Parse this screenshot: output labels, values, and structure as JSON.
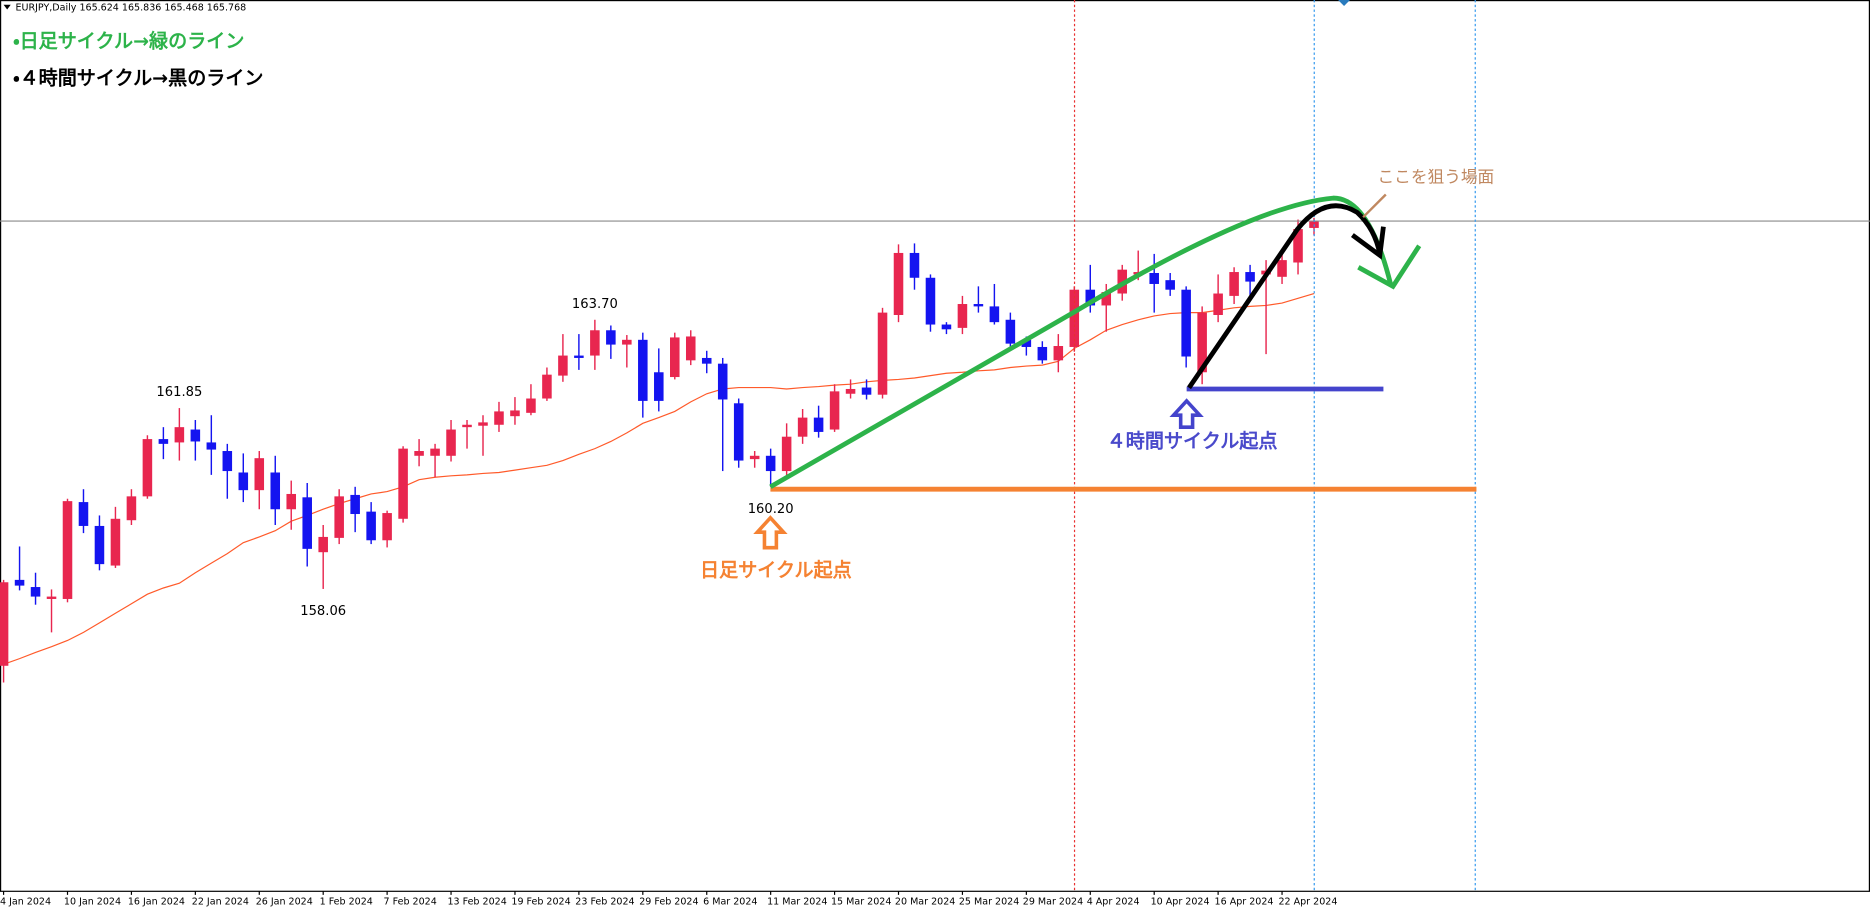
{
  "chart_data": {
    "type": "candlestick",
    "title": "EURJPY,Daily",
    "annotations": {
      "daily_cycle_legend": "・日足サイクル→緑のライン",
      "h4_cycle_legend": "・４時間サイクル→黒のライン",
      "target_zone": "ここを狙う場面",
      "h4_cycle_start": "４時間サイクル起点",
      "daily_cycle_start": "日足サイクル起点"
    },
    "categories": [
      "4 Jan 2024",
      null,
      null,
      null,
      "10 Jan 2024",
      null,
      null,
      null,
      "16 Jan 2024",
      null,
      null,
      null,
      "22 Jan 2024",
      null,
      null,
      null,
      "26 Jan 2024",
      null,
      null,
      null,
      "1 Feb 2024",
      null,
      null,
      null,
      "7 Feb 2024",
      null,
      null,
      null,
      "13 Feb 2024",
      null,
      null,
      null,
      "19 Feb 2024",
      null,
      null,
      null,
      "23 Feb 2024",
      null,
      null,
      null,
      "29 Feb 2024",
      null,
      null,
      null,
      "6 Mar 2024",
      null,
      null,
      null,
      "11 Mar 2024",
      null,
      null,
      null,
      "15 Mar 2024",
      null,
      null,
      null,
      "20 Mar 2024",
      null,
      null,
      null,
      "25 Mar 2024",
      null,
      null,
      null,
      "29 Mar 2024",
      null,
      null,
      null,
      "4 Apr 2024",
      null,
      null,
      null,
      "10 Apr 2024",
      null,
      null,
      null,
      "16 Apr 2024",
      null,
      null,
      null,
      "22 Apr 2024",
      null,
      null
    ],
    "ohlc": [
      [
        156.45,
        158.25,
        156.1,
        158.2
      ],
      [
        158.25,
        158.95,
        158.03,
        158.13
      ],
      [
        158.1,
        158.4,
        157.73,
        157.9
      ],
      [
        157.85,
        158.05,
        157.15,
        157.9
      ],
      [
        157.85,
        159.95,
        157.78,
        159.9
      ],
      [
        159.88,
        160.15,
        159.23,
        159.38
      ],
      [
        159.38,
        159.6,
        158.45,
        158.58
      ],
      [
        158.55,
        159.78,
        158.5,
        159.53
      ],
      [
        159.5,
        160.15,
        159.4,
        160.0
      ],
      [
        160.0,
        161.28,
        159.95,
        161.2
      ],
      [
        161.2,
        161.45,
        160.78,
        161.1
      ],
      [
        161.13,
        161.85,
        160.75,
        161.45
      ],
      [
        161.4,
        161.6,
        160.75,
        161.15
      ],
      [
        161.13,
        161.7,
        160.45,
        160.98
      ],
      [
        160.95,
        161.1,
        159.95,
        160.53
      ],
      [
        160.5,
        160.9,
        159.88,
        160.13
      ],
      [
        160.13,
        160.95,
        159.73,
        160.8
      ],
      [
        160.5,
        160.85,
        159.4,
        159.73
      ],
      [
        159.73,
        160.33,
        159.3,
        160.05
      ],
      [
        159.98,
        160.28,
        158.53,
        158.9
      ],
      [
        158.83,
        159.4,
        158.06,
        159.15
      ],
      [
        159.13,
        160.15,
        159.0,
        160.0
      ],
      [
        160.03,
        160.2,
        159.25,
        159.63
      ],
      [
        159.68,
        159.88,
        159.0,
        159.08
      ],
      [
        159.08,
        159.7,
        158.93,
        159.65
      ],
      [
        159.53,
        161.05,
        159.45,
        161.0
      ],
      [
        160.85,
        161.2,
        160.63,
        160.95
      ],
      [
        160.85,
        161.1,
        160.4,
        161.0
      ],
      [
        160.85,
        161.6,
        160.73,
        161.4
      ],
      [
        161.45,
        161.6,
        161.0,
        161.5
      ],
      [
        161.48,
        161.7,
        160.85,
        161.55
      ],
      [
        161.5,
        161.98,
        161.35,
        161.78
      ],
      [
        161.68,
        162.08,
        161.5,
        161.8
      ],
      [
        161.75,
        162.35,
        161.7,
        162.05
      ],
      [
        162.05,
        162.7,
        162.0,
        162.55
      ],
      [
        162.53,
        163.4,
        162.4,
        162.95
      ],
      [
        162.95,
        163.4,
        162.65,
        162.9
      ],
      [
        162.95,
        163.7,
        162.65,
        163.48
      ],
      [
        163.48,
        163.58,
        162.88,
        163.18
      ],
      [
        163.18,
        163.38,
        162.7,
        163.28
      ],
      [
        163.28,
        163.43,
        161.65,
        162.0
      ],
      [
        162.6,
        163.1,
        161.78,
        162.0
      ],
      [
        162.5,
        163.43,
        162.45,
        163.33
      ],
      [
        162.85,
        163.48,
        162.75,
        163.35
      ],
      [
        162.9,
        163.05,
        162.58,
        162.78
      ],
      [
        162.78,
        162.9,
        160.53,
        162.03
      ],
      [
        161.95,
        162.05,
        160.6,
        160.75
      ],
      [
        160.78,
        160.95,
        160.6,
        160.85
      ],
      [
        160.85,
        161.0,
        160.2,
        160.53
      ],
      [
        160.53,
        161.53,
        160.38,
        161.25
      ],
      [
        161.25,
        161.83,
        161.1,
        161.65
      ],
      [
        161.65,
        161.9,
        161.23,
        161.35
      ],
      [
        161.4,
        162.35,
        161.35,
        162.2
      ],
      [
        162.15,
        162.45,
        162.05,
        162.25
      ],
      [
        162.28,
        162.45,
        162.03,
        162.13
      ],
      [
        162.13,
        163.95,
        162.05,
        163.85
      ],
      [
        163.8,
        165.28,
        163.65,
        165.1
      ],
      [
        165.1,
        165.3,
        164.33,
        164.58
      ],
      [
        164.58,
        164.65,
        163.45,
        163.6
      ],
      [
        163.6,
        163.65,
        163.4,
        163.5
      ],
      [
        163.53,
        164.2,
        163.4,
        164.03
      ],
      [
        164.03,
        164.4,
        163.85,
        163.98
      ],
      [
        163.98,
        164.45,
        163.6,
        163.65
      ],
      [
        163.7,
        163.85,
        163.1,
        163.2
      ],
      [
        163.28,
        163.35,
        162.95,
        163.13
      ],
      [
        163.13,
        163.25,
        162.78,
        162.85
      ],
      [
        162.85,
        163.4,
        162.6,
        163.15
      ],
      [
        163.13,
        164.4,
        163.03,
        164.33
      ],
      [
        164.33,
        164.85,
        163.85,
        164.0
      ],
      [
        164.0,
        164.45,
        163.45,
        164.28
      ],
      [
        164.25,
        164.85,
        164.1,
        164.75
      ],
      [
        164.65,
        165.15,
        164.53,
        164.7
      ],
      [
        164.68,
        165.08,
        163.85,
        164.45
      ],
      [
        164.53,
        164.68,
        164.2,
        164.33
      ],
      [
        164.33,
        164.4,
        162.7,
        162.93
      ],
      [
        162.6,
        163.98,
        162.35,
        163.85
      ],
      [
        163.8,
        164.65,
        163.65,
        164.25
      ],
      [
        164.2,
        164.8,
        164.03,
        164.7
      ],
      [
        164.7,
        164.85,
        164.1,
        164.5
      ],
      [
        164.65,
        164.95,
        162.98,
        164.73
      ],
      [
        164.6,
        165.08,
        164.45,
        164.95
      ],
      [
        164.9,
        165.8,
        164.65,
        165.6
      ],
      [
        165.624,
        165.836,
        165.468,
        165.768
      ]
    ],
    "up_color": "#e8264f",
    "down_color": "#1414f0",
    "moving_average": {
      "color": "#ff5a2a",
      "values": [
        156.48,
        156.6,
        156.73,
        156.85,
        156.98,
        157.15,
        157.35,
        157.55,
        157.75,
        157.95,
        158.08,
        158.18,
        158.4,
        158.6,
        158.8,
        159.03,
        159.15,
        159.28,
        159.48,
        159.6,
        159.73,
        159.85,
        159.95,
        160.05,
        160.1,
        160.2,
        160.35,
        160.4,
        160.43,
        160.45,
        160.48,
        160.5,
        160.55,
        160.6,
        160.65,
        160.75,
        160.88,
        161.0,
        161.15,
        161.33,
        161.53,
        161.65,
        161.78,
        161.98,
        162.15,
        162.25,
        162.28,
        162.28,
        162.28,
        162.25,
        162.28,
        162.3,
        162.33,
        162.35,
        162.4,
        162.43,
        162.45,
        162.48,
        162.53,
        162.58,
        162.6,
        162.63,
        162.65,
        162.7,
        162.73,
        162.75,
        162.83,
        163.1,
        163.28,
        163.48,
        163.6,
        163.7,
        163.78,
        163.83,
        163.85,
        163.85,
        163.9,
        163.95,
        163.98,
        164.0,
        164.05,
        164.15,
        164.25
      ]
    },
    "extreme_labels": [
      {
        "label": "161.85",
        "candle": 11,
        "at": "high"
      },
      {
        "label": "163.70",
        "candle": 37,
        "at": "high"
      },
      {
        "label": "158.06",
        "candle": 20,
        "at": "low"
      },
      {
        "label": "160.20",
        "candle": 48,
        "at": "low"
      }
    ],
    "ylim": [
      151.725,
      170.4
    ]
  }
}
